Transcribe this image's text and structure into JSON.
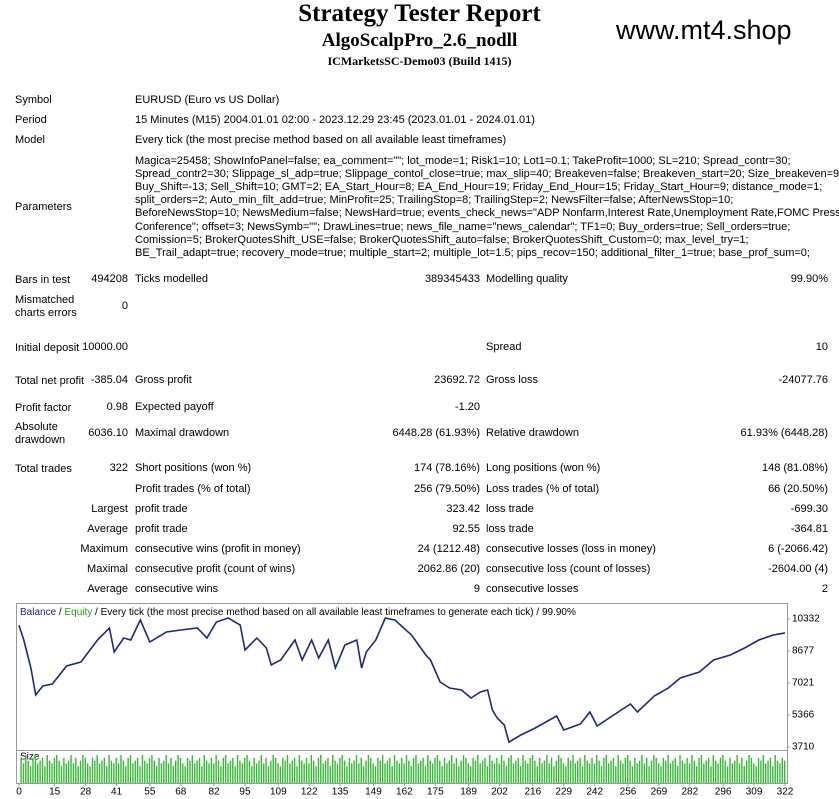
{
  "header": {
    "title": "Strategy Tester Report",
    "expert": "AlgoScalpPro_2.6_nodll",
    "server": "ICMarketsSC-Demo03 (Build 1415)",
    "watermark": "www.mt4.shop"
  },
  "info": [
    {
      "label": "Symbol",
      "value": "EURUSD (Euro vs US Dollar)"
    },
    {
      "label": "Period",
      "value": "15 Minutes (M15) 2004.01.01 02:00 - 2023.12.29 23:45 (2023.01.01 - 2024.01.01)"
    },
    {
      "label": "Model",
      "value": "Every tick (the most precise method based on all available least timeframes)"
    }
  ],
  "parameters": {
    "label": "Parameters",
    "lines": [
      "Magica=25458; ShowInfoPanel=false; ea_comment=\"\"; lot_mode=1; Risk1=10; Lot1=0.1; TakeProfit=1000; SL=210; Spread_contr=30;",
      "Spread_contr2=30; Slippage_sl_adp=true; Slippage_contol_close=true; max_slip=40; Breakeven=false; Breakeven_start=20; Size_breakeven=9;",
      "Buy_Shift=-13; Sell_Shift=10; GMT=2; EA_Start_Hour=8; EA_End_Hour=19; Friday_End_Hour=15; Friday_Start_Hour=9; distance_mode=1;",
      "split_orders=2; Auto_min_filt_add=true; MinProfit=25; TrailingStop=8; TrailingStep=2; NewsFilter=false; AfterNewsStop=10;",
      "BeforeNewsStop=10; NewsMedium=false; NewsHard=true; events_check_news=\"ADP Nonfarm,Interest Rate,Unemployment Rate,FOMC Press",
      "Conference\"; offset=3; NewsSymb=\"\"; DrawLines=true; news_file_name=\"news_calendar\"; TF1=0; Buy_orders=true; Sell_orders=true;",
      "Comission=5; BrokerQuotesShift_USE=false; BrokerQuotesShift_auto=false; BrokerQuotesShift_Custom=0; max_level_try=1;",
      "BE_Trail_adapt=true; recovery_mode=true; multiple_start=2; multiple_lot=1.5; pips_recov=150; additional_filter_1=true; base_prof_sum=0;"
    ]
  },
  "stats": [
    [
      {
        "label": "Bars in test",
        "value": "494208"
      },
      {
        "label": "Ticks modelled",
        "value": "389345433"
      },
      {
        "label": "Modelling quality",
        "value": "99.90%"
      }
    ],
    [
      {
        "label": "Mismatched charts errors",
        "value": "0"
      },
      null,
      null
    ],
    [
      {
        "label": "Initial deposit",
        "value": "10000.00"
      },
      null,
      {
        "label": "Spread",
        "value": "10"
      }
    ],
    [
      {
        "label": "Total net profit",
        "value": "-385.04"
      },
      {
        "label": "Gross profit",
        "value": "23692.72"
      },
      {
        "label": "Gross loss",
        "value": "-24077.76"
      }
    ],
    [
      {
        "label": "Profit factor",
        "value": "0.98"
      },
      {
        "label": "Expected payoff",
        "value": "-1.20"
      },
      null
    ],
    [
      {
        "label": "Absolute drawdown",
        "value": "6036.10"
      },
      {
        "label": "Maximal drawdown",
        "value": "6448.28 (61.93%)"
      },
      {
        "label": "Relative drawdown",
        "value": "61.93% (6448.28)"
      }
    ],
    [
      {
        "label": "Total trades",
        "value": "322"
      },
      {
        "label": "Short positions (won %)",
        "value": "174 (78.16%)"
      },
      {
        "label": "Long positions (won %)",
        "value": "148 (81.08%)"
      }
    ],
    [
      null,
      {
        "label": "Profit trades (% of total)",
        "value": "256 (79.50%)"
      },
      {
        "label": "Loss trades (% of total)",
        "value": "66 (20.50%)"
      }
    ],
    [
      {
        "label": "Largest"
      },
      {
        "label": "profit trade",
        "value": "323.42"
      },
      {
        "label": "loss trade",
        "value": "-699.30"
      }
    ],
    [
      {
        "label": "Average"
      },
      {
        "label": "profit trade",
        "value": "92.55"
      },
      {
        "label": "loss trade",
        "value": "-364.81"
      }
    ],
    [
      {
        "label": "Maximum"
      },
      {
        "label": "consecutive wins (profit in money)",
        "value": "24 (1212.48)"
      },
      {
        "label": "consecutive losses (loss in money)",
        "value": "6 (-2066.42)"
      }
    ],
    [
      {
        "label": "Maximal"
      },
      {
        "label": "consecutive profit (count of wins)",
        "value": "2062.86 (20)"
      },
      {
        "label": "consecutive loss (count of losses)",
        "value": "-2604.00 (4)"
      }
    ],
    [
      {
        "label": "Average"
      },
      {
        "label": "consecutive wins",
        "value": "9"
      },
      {
        "label": "consecutive losses",
        "value": "2"
      }
    ]
  ],
  "chart_data": {
    "type": "line",
    "legend": {
      "balance": "Balance",
      "separator": " / ",
      "equity": "Equity",
      "description": "Every tick (the most precise method based on all available least timeframes to generate each tick) / 99.90%"
    },
    "equity_color": "#1f9c1f",
    "xlim": [
      0,
      322
    ],
    "xticks": [
      0,
      15,
      28,
      41,
      55,
      68,
      82,
      95,
      109,
      122,
      135,
      149,
      162,
      175,
      189,
      202,
      216,
      229,
      242,
      256,
      269,
      282,
      296,
      309,
      322
    ],
    "ylim": [
      3555,
      11160
    ],
    "yticks": [
      10332,
      8677,
      7021,
      5366,
      3710
    ],
    "x": [
      0,
      2,
      5,
      7,
      10,
      14,
      20,
      26,
      33,
      38,
      40,
      44,
      47,
      51,
      55,
      62,
      68,
      75,
      79,
      83,
      88,
      93,
      95,
      100,
      104,
      106,
      110,
      116,
      119,
      123,
      126,
      130,
      133,
      137,
      142,
      144,
      146,
      150,
      154,
      158,
      165,
      171,
      173,
      177,
      181,
      186,
      190,
      194,
      197,
      199,
      201,
      204,
      206,
      211,
      217,
      223,
      226,
      229,
      236,
      240,
      243,
      250,
      257,
      260,
      267,
      273,
      278,
      286,
      292,
      299,
      305,
      311,
      317,
      322
    ],
    "series": [
      {
        "name": "Balance",
        "color": "#1a2a80",
        "values": [
          10000,
          9246,
          7797,
          6401,
          6866,
          6970,
          7901,
          8108,
          9246,
          9866,
          8625,
          9349,
          9246,
          10280,
          9142,
          9659,
          9763,
          9866,
          9349,
          10177,
          10384,
          10022,
          8728,
          9349,
          8832,
          7952,
          8211,
          9246,
          8211,
          9246,
          8315,
          9246,
          7797,
          8987,
          9246,
          7797,
          8625,
          9246,
          10384,
          10280,
          9504,
          8470,
          8211,
          7073,
          6763,
          6659,
          6245,
          6556,
          6659,
          5625,
          5211,
          4849,
          3964,
          4331,
          4694,
          5107,
          5314,
          4590,
          4901,
          5521,
          4797,
          5366,
          5935,
          5521,
          6349,
          6763,
          7280,
          7590,
          8211,
          8470,
          8832,
          9246,
          9504,
          9615
        ]
      }
    ],
    "size": {
      "name": "Size",
      "color": "#33bb33",
      "vlim": [
        0,
        1
      ],
      "values": [
        0.9,
        0.7,
        1,
        0.8,
        0.6,
        0.9,
        1,
        0.7,
        0.8,
        0.9,
        0.6,
        1,
        0.8,
        0.7,
        0.9,
        1,
        0.8,
        0.6,
        0.9,
        0.7,
        0.8,
        1,
        0.7,
        0.9,
        0.6,
        0.8,
        1,
        0.9,
        0.7,
        0.6,
        0.9,
        0.8,
        1,
        0.7,
        0.8,
        0.9,
        0.6,
        1,
        0.8,
        0.7,
        0.9,
        0.7,
        1,
        0.8,
        0.6,
        0.9,
        1,
        0.7,
        0.8,
        0.9,
        0.6,
        1,
        0.8,
        0.7,
        0.9,
        1,
        0.8,
        0.6,
        0.9,
        0.7,
        0.8,
        1,
        0.7,
        0.9,
        0.6,
        0.8,
        1,
        0.9,
        0.7,
        0.6,
        0.9,
        0.8,
        1,
        0.7,
        0.8,
        0.9,
        0.6,
        1,
        0.8,
        0.7,
        0.9,
        0.7,
        1,
        0.8,
        0.6,
        0.9,
        1,
        0.7,
        0.8,
        0.9,
        0.6,
        1,
        0.8,
        0.7,
        0.9,
        1,
        0.8,
        0.6,
        0.9,
        0.7,
        0.8,
        1,
        0.7,
        0.9,
        0.6,
        0.8,
        1,
        0.9,
        0.7,
        0.6,
        0.9,
        0.8,
        1,
        0.7,
        0.8,
        0.9,
        0.6,
        1,
        0.8,
        0.7,
        0.9,
        0.7,
        1,
        0.8,
        0.6,
        0.9,
        1,
        0.7,
        0.8,
        0.9,
        0.6,
        1,
        0.8,
        0.7,
        0.9,
        1,
        0.8,
        0.6,
        0.9,
        0.7,
        0.8,
        1,
        0.7,
        0.9,
        0.6,
        0.8,
        1,
        0.9,
        0.7,
        0.6,
        0.9,
        0.8,
        1,
        0.7,
        0.8,
        0.9,
        0.6,
        1,
        0.8,
        0.7,
        0.9,
        0.7,
        1,
        0.8,
        0.6,
        0.9,
        1,
        0.7,
        0.8,
        0.9,
        0.6,
        1,
        0.8,
        0.7,
        0.9,
        1,
        0.8,
        0.6,
        0.9,
        0.7,
        0.8,
        1,
        0.7,
        0.9,
        0.6,
        0.8,
        1,
        0.9,
        0.7,
        0.6,
        0.9,
        0.8,
        1,
        0.7,
        0.8,
        0.9,
        0.6,
        1,
        0.8,
        0.7,
        0.9,
        0.7,
        1,
        0.8,
        0.6,
        0.9,
        1,
        0.7,
        0.8,
        0.9,
        0.6,
        1,
        0.8,
        0.7,
        0.9,
        1,
        0.8,
        0.6,
        0.9,
        0.7,
        0.8,
        1,
        0.7,
        0.9,
        0.6,
        0.8,
        1,
        0.9,
        0.7,
        0.6,
        0.9,
        0.8,
        1,
        0.7,
        0.8,
        0.9,
        0.6,
        1,
        0.8,
        0.7,
        0.9,
        0.7,
        1,
        0.8,
        0.6,
        0.9,
        1,
        0.7,
        0.8,
        0.9,
        0.6,
        1,
        0.8,
        0.7,
        0.9,
        1,
        0.8,
        0.6,
        0.9,
        0.7,
        0.8,
        1,
        0.7,
        0.9,
        0.6,
        0.8,
        1,
        0.9,
        0.7,
        0.6,
        0.9,
        0.8,
        1,
        0.7,
        0.8,
        0.9,
        0.6,
        1,
        0.8,
        0.7,
        0.9,
        0.7,
        1,
        0.8,
        0.6,
        0.9,
        1,
        0.7,
        0.8,
        0.9,
        0.6,
        1,
        0.8,
        0.7,
        0.9,
        1,
        0.8,
        0.6,
        0.9,
        0.7,
        0.8,
        1,
        0.7,
        0.9,
        0.6,
        0.8,
        1,
        0.9,
        0.7,
        0.6,
        0.9,
        0.8,
        1,
        0.7,
        0.8,
        0.9,
        0.6,
        1,
        0.8,
        0.7,
        0.9,
        0.8
      ]
    }
  }
}
